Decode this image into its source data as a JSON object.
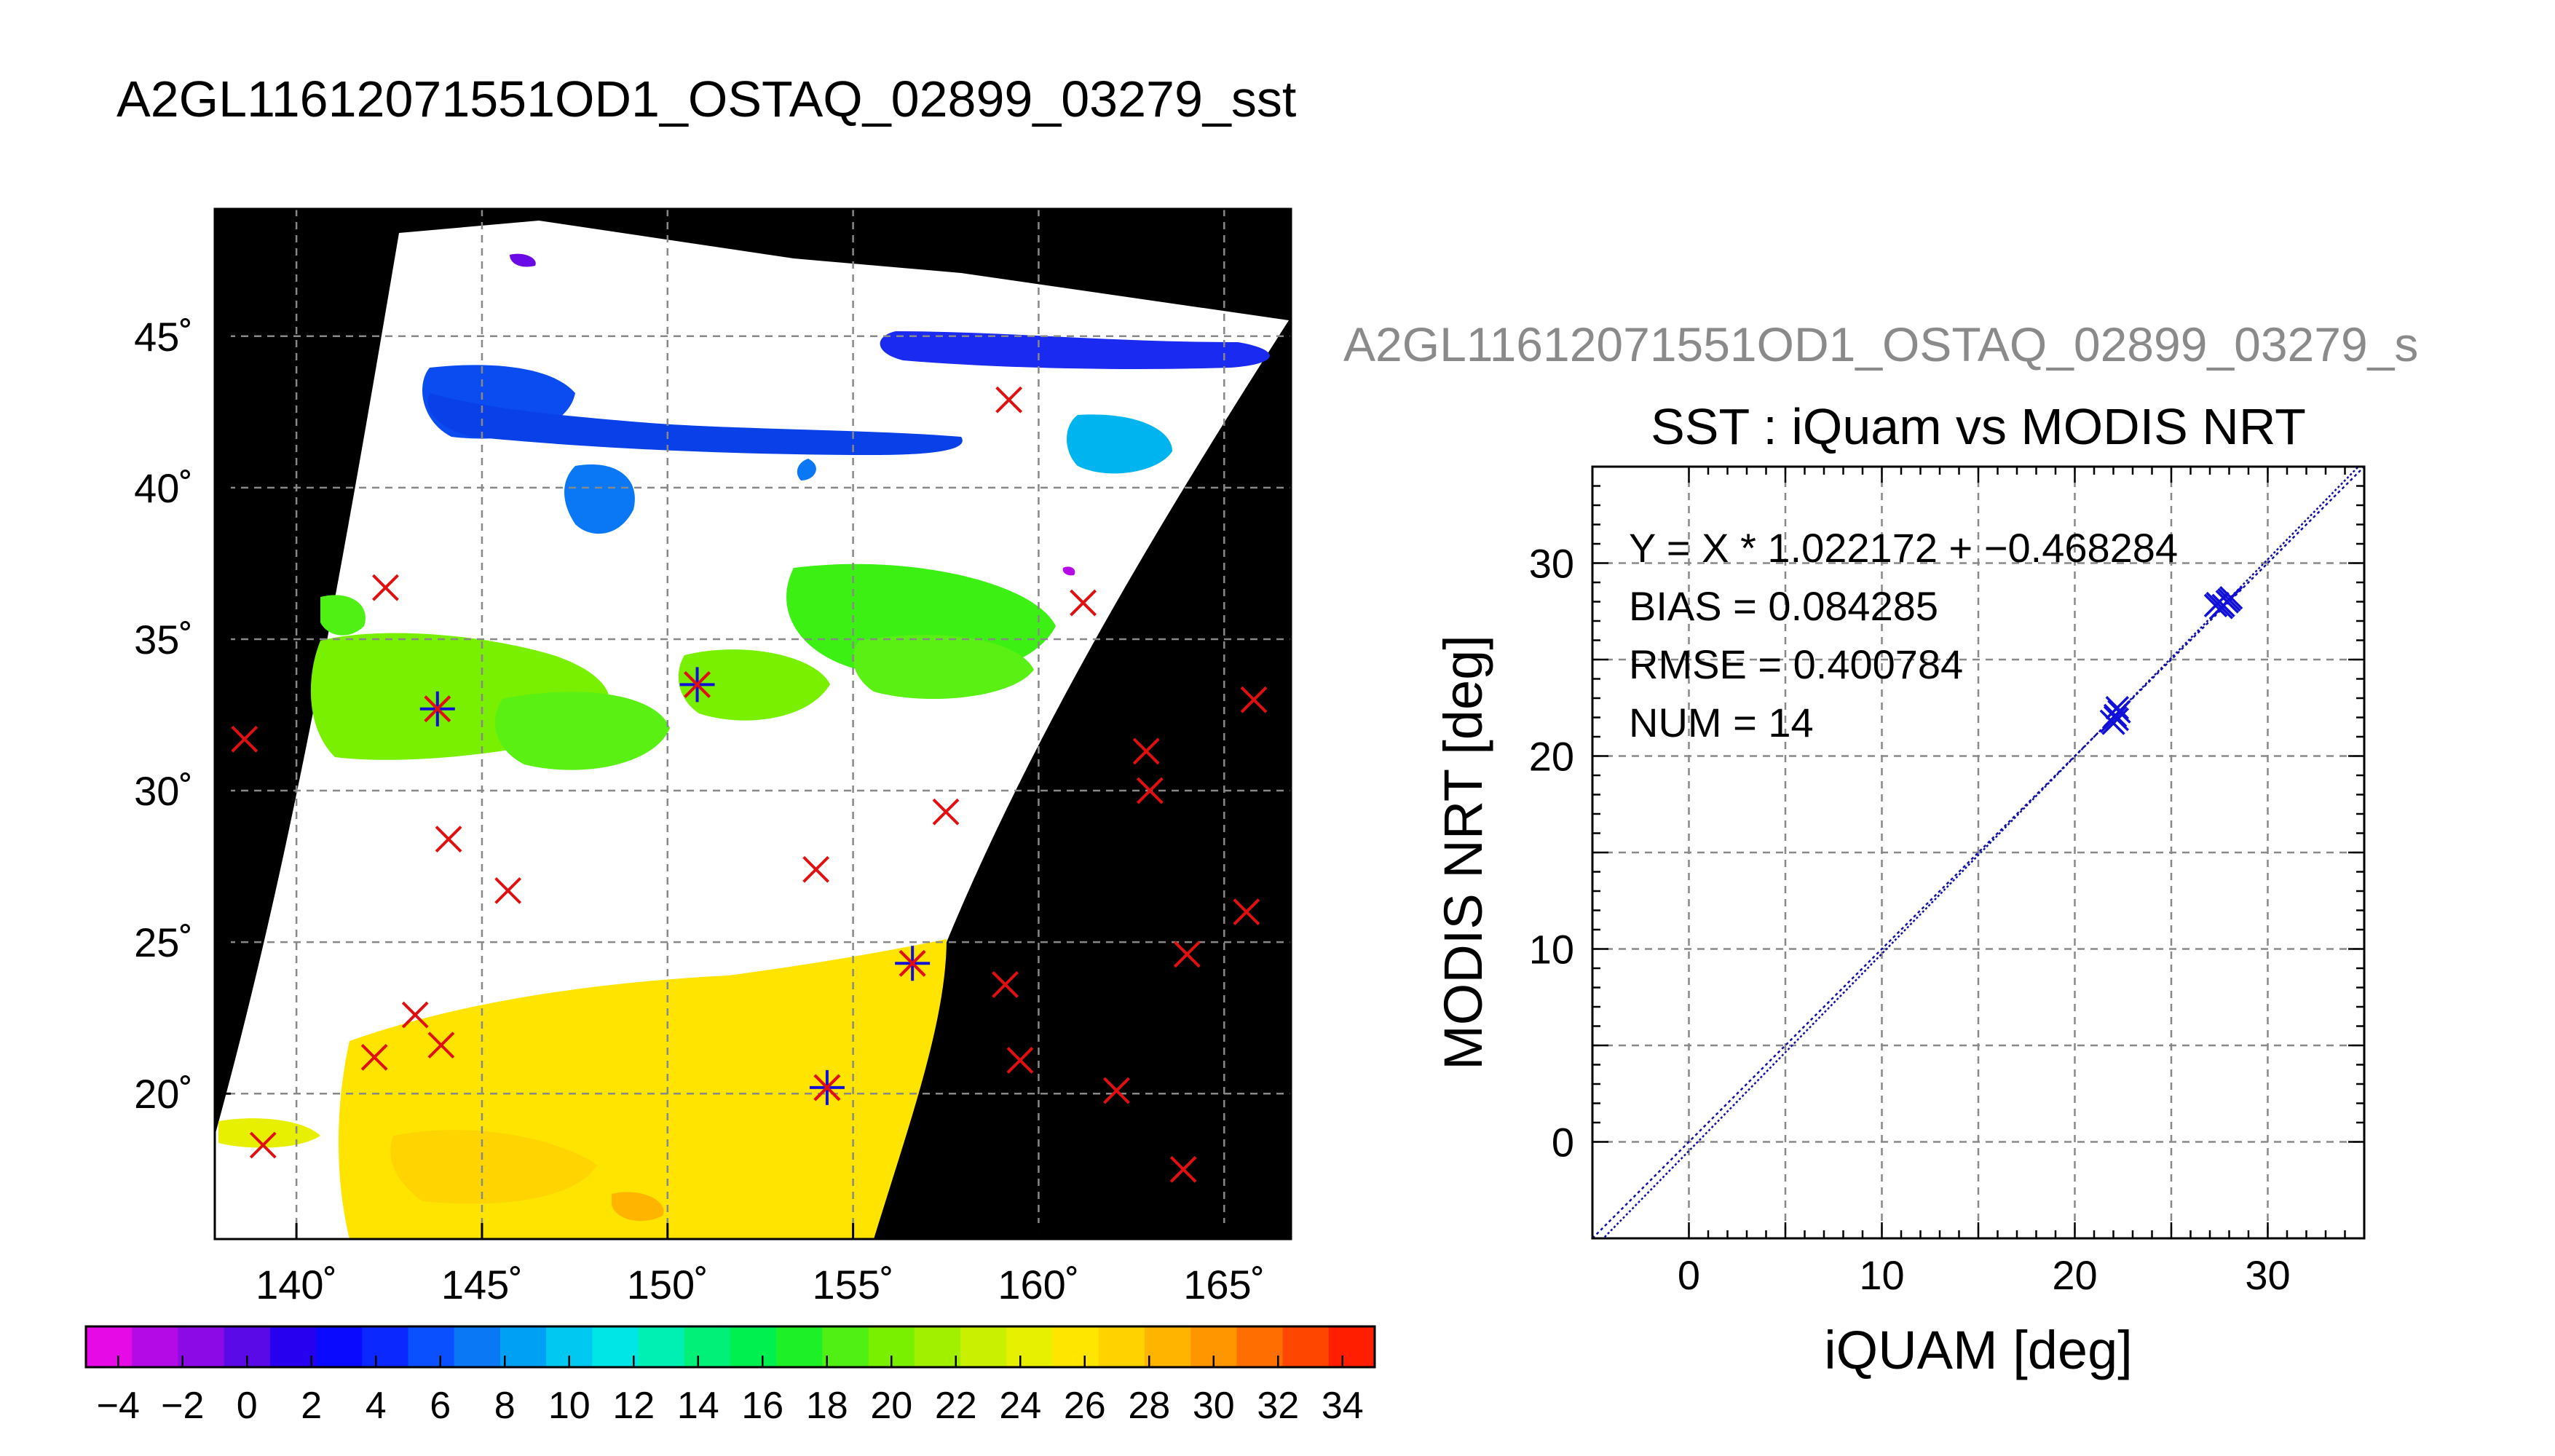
{
  "page_title": "A2GL11612071551OD1_OSTAQ_02899_03279_sst",
  "chart_data": [
    {
      "type": "map",
      "xlabel": "",
      "ylabel": "",
      "lon_range": [
        137.8,
        166.8
      ],
      "lat_range": [
        15.2,
        49.2
      ],
      "lon_ticks": [
        140,
        145,
        150,
        155,
        160,
        165
      ],
      "lon_tick_labels": [
        "140˚",
        "145˚",
        "150˚",
        "155˚",
        "160˚",
        "165˚"
      ],
      "lat_ticks": [
        20,
        25,
        30,
        35,
        40,
        45
      ],
      "lat_tick_labels": [
        "20˚",
        "25˚",
        "30˚",
        "35˚",
        "40˚",
        "45˚"
      ],
      "grid": true,
      "red_markers": [
        [
          138.6,
          31.7
        ],
        [
          139.1,
          18.3
        ],
        [
          142.4,
          36.7
        ],
        [
          144.1,
          28.4
        ],
        [
          145.7,
          26.7
        ],
        [
          143.2,
          22.6
        ],
        [
          142.1,
          21.2
        ],
        [
          143.9,
          21.6
        ],
        [
          154.0,
          27.4
        ],
        [
          157.5,
          29.3
        ],
        [
          159.2,
          42.9
        ],
        [
          161.2,
          36.2
        ],
        [
          162.9,
          31.3
        ],
        [
          163.0,
          30.0
        ],
        [
          165.8,
          33.0
        ],
        [
          165.6,
          26.0
        ],
        [
          164.0,
          24.6
        ],
        [
          159.1,
          23.6
        ],
        [
          159.5,
          21.1
        ],
        [
          162.1,
          20.1
        ],
        [
          163.9,
          17.5
        ],
        [
          143.8,
          32.7
        ],
        [
          150.8,
          33.5
        ],
        [
          154.3,
          20.2
        ],
        [
          156.6,
          24.3
        ]
      ],
      "matchup_markers": [
        [
          143.8,
          32.7
        ],
        [
          150.8,
          33.5
        ],
        [
          154.3,
          20.2
        ],
        [
          156.6,
          24.3
        ]
      ],
      "colorbar": {
        "min": -5,
        "max": 35,
        "tick_values": [
          -4,
          -2,
          0,
          2,
          4,
          6,
          8,
          10,
          12,
          14,
          16,
          18,
          20,
          22,
          24,
          26,
          28,
          30,
          32,
          34
        ],
        "tick_labels": [
          "−4",
          "−2",
          "0",
          "2",
          "4",
          "6",
          "8",
          "10",
          "12",
          "14",
          "16",
          "18",
          "20",
          "22",
          "24",
          "26",
          "28",
          "30",
          "32",
          "34"
        ],
        "colors": [
          "#e60ae6",
          "#b40ae6",
          "#8c0ae6",
          "#5a0ae6",
          "#2800f0",
          "#0a0aff",
          "#0a28ff",
          "#0a50ff",
          "#0a78f5",
          "#00a0f5",
          "#00c8f0",
          "#00e6e6",
          "#00f0b4",
          "#00f078",
          "#00f050",
          "#1ef028",
          "#50f014",
          "#78f000",
          "#a0f000",
          "#c8f000",
          "#e6f000",
          "#ffe600",
          "#ffd200",
          "#ffb400",
          "#ff9600",
          "#ff6e00",
          "#ff4600",
          "#ff1e00"
        ]
      }
    },
    {
      "type": "scatter",
      "overlay_title": "A2GL11612071551OD1_OSTAQ_02899_03279_s",
      "title": "SST : iQuam vs MODIS NRT",
      "xlabel": "iQUAM [deg]",
      "ylabel": "MODIS NRT [deg]",
      "xlim": [
        -5,
        35
      ],
      "ylim": [
        -5,
        35
      ],
      "xticks": [
        0,
        10,
        20,
        30
      ],
      "yticks": [
        0,
        10,
        20,
        30
      ],
      "grid": true,
      "stats": [
        "Y = X * 1.022172 + −0.468284",
        "BIAS = 0.084285",
        "RMSE = 0.400784",
        "NUM = 14"
      ],
      "fit": {
        "slope": 1.022172,
        "intercept": -0.468284
      },
      "points": [
        [
          22.0,
          21.7
        ],
        [
          22.2,
          21.9
        ],
        [
          22.1,
          22.1
        ],
        [
          22.3,
          22.3
        ],
        [
          21.9,
          21.8
        ],
        [
          22.2,
          22.5
        ],
        [
          27.3,
          27.8
        ],
        [
          27.6,
          27.7
        ],
        [
          28.1,
          28.2
        ],
        [
          27.9,
          28.0
        ],
        [
          27.4,
          27.9
        ],
        [
          28.0,
          28.1
        ],
        [
          22.1,
          22.0
        ],
        [
          27.7,
          27.8
        ]
      ],
      "marker_color": "#1010d8",
      "line_color": "#1010a0"
    }
  ]
}
